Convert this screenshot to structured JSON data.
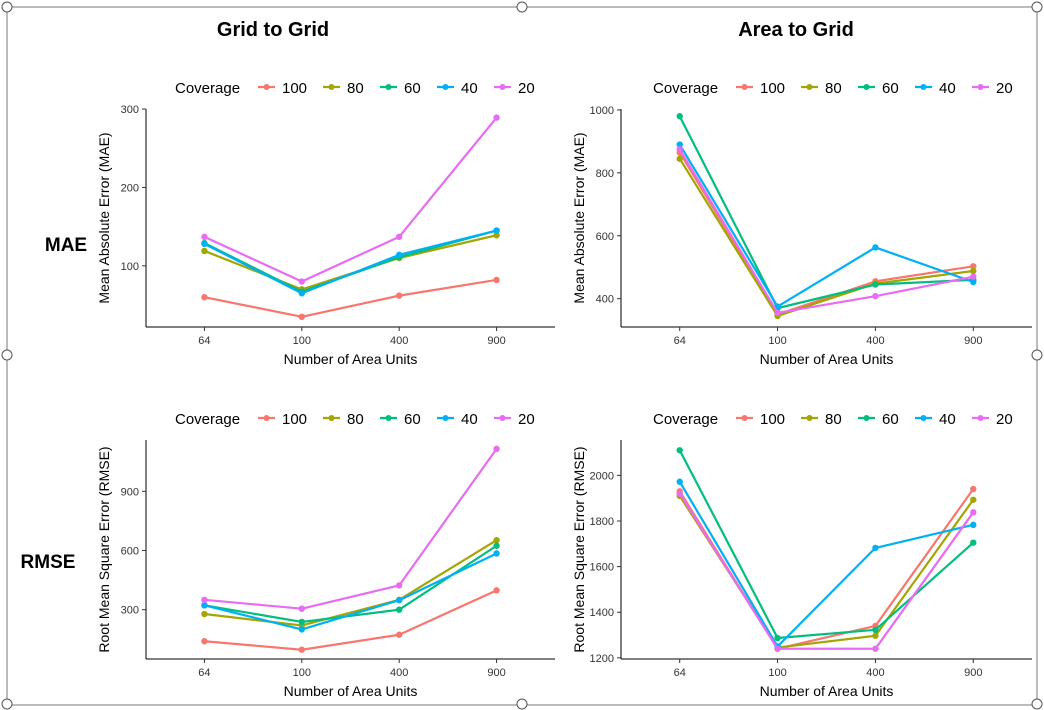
{
  "figure": {
    "columns": [
      "Grid to Grid",
      "Area to Grid"
    ],
    "rows": [
      "MAE",
      "RMSE"
    ]
  },
  "legend": {
    "title": "Coverage",
    "entries": [
      {
        "label": "100",
        "color": "#F8766D"
      },
      {
        "label": "80",
        "color": "#A3A500"
      },
      {
        "label": "60",
        "color": "#00BF7D"
      },
      {
        "label": "40",
        "color": "#00B0F6"
      },
      {
        "label": "20",
        "color": "#E76BF3"
      }
    ]
  },
  "chart_data": [
    {
      "type": "line",
      "title": "Grid to Grid — MAE",
      "xlabel": "Number of Area Units",
      "ylabel": "Mean Absolute Error (MAE)",
      "categories": [
        "64",
        "100",
        "400",
        "900"
      ],
      "yticks": [
        100,
        200,
        300
      ],
      "ylim": [
        22,
        300
      ],
      "series": [
        {
          "name": "100",
          "values": [
            60,
            35,
            62,
            82
          ]
        },
        {
          "name": "80",
          "values": [
            119,
            70,
            110,
            139
          ]
        },
        {
          "name": "60",
          "values": [
            129,
            67,
            111,
            145
          ]
        },
        {
          "name": "40",
          "values": [
            128,
            65,
            114,
            145
          ]
        },
        {
          "name": "20",
          "values": [
            137,
            80,
            137,
            289
          ]
        }
      ]
    },
    {
      "type": "line",
      "title": "Area to Grid — MAE",
      "xlabel": "Number of Area Units",
      "ylabel": "Mean Absolute Error (MAE)",
      "categories": [
        "64",
        "100",
        "400",
        "900"
      ],
      "yticks": [
        400,
        600,
        800,
        1000
      ],
      "ylim": [
        310,
        1003
      ],
      "series": [
        {
          "name": "100",
          "values": [
            865,
            350,
            455,
            503
          ]
        },
        {
          "name": "80",
          "values": [
            845,
            345,
            448,
            488
          ]
        },
        {
          "name": "60",
          "values": [
            980,
            370,
            445,
            460
          ]
        },
        {
          "name": "40",
          "values": [
            890,
            375,
            563,
            453
          ]
        },
        {
          "name": "20",
          "values": [
            875,
            355,
            408,
            470
          ]
        }
      ]
    },
    {
      "type": "line",
      "title": "Grid to Grid — RMSE",
      "xlabel": "Number of Area Units",
      "ylabel": "Root Mean Square Error (RMSE)",
      "categories": [
        "64",
        "100",
        "400",
        "900"
      ],
      "yticks": [
        300,
        600,
        900
      ],
      "ylim": [
        50,
        1160
      ],
      "series": [
        {
          "name": "100",
          "values": [
            140,
            97,
            173,
            398
          ]
        },
        {
          "name": "80",
          "values": [
            278,
            220,
            350,
            652
          ]
        },
        {
          "name": "60",
          "values": [
            322,
            238,
            300,
            624
          ]
        },
        {
          "name": "40",
          "values": [
            322,
            200,
            348,
            585
          ]
        },
        {
          "name": "20",
          "values": [
            350,
            305,
            423,
            1115
          ]
        }
      ]
    },
    {
      "type": "line",
      "title": "Area to Grid — RMSE",
      "xlabel": "Number of Area Units",
      "ylabel": "Root Mean Square Error (RMSE)",
      "categories": [
        "64",
        "100",
        "400",
        "900"
      ],
      "yticks": [
        1200,
        1400,
        1600,
        1800,
        2000
      ],
      "ylim": [
        1195,
        2155
      ],
      "series": [
        {
          "name": "100",
          "values": [
            1930,
            1240,
            1340,
            1940
          ]
        },
        {
          "name": "80",
          "values": [
            1910,
            1245,
            1297,
            1893
          ]
        },
        {
          "name": "60",
          "values": [
            2110,
            1287,
            1323,
            1705
          ]
        },
        {
          "name": "40",
          "values": [
            1972,
            1250,
            1682,
            1783
          ]
        },
        {
          "name": "20",
          "values": [
            1920,
            1240,
            1240,
            1838
          ]
        }
      ]
    }
  ]
}
